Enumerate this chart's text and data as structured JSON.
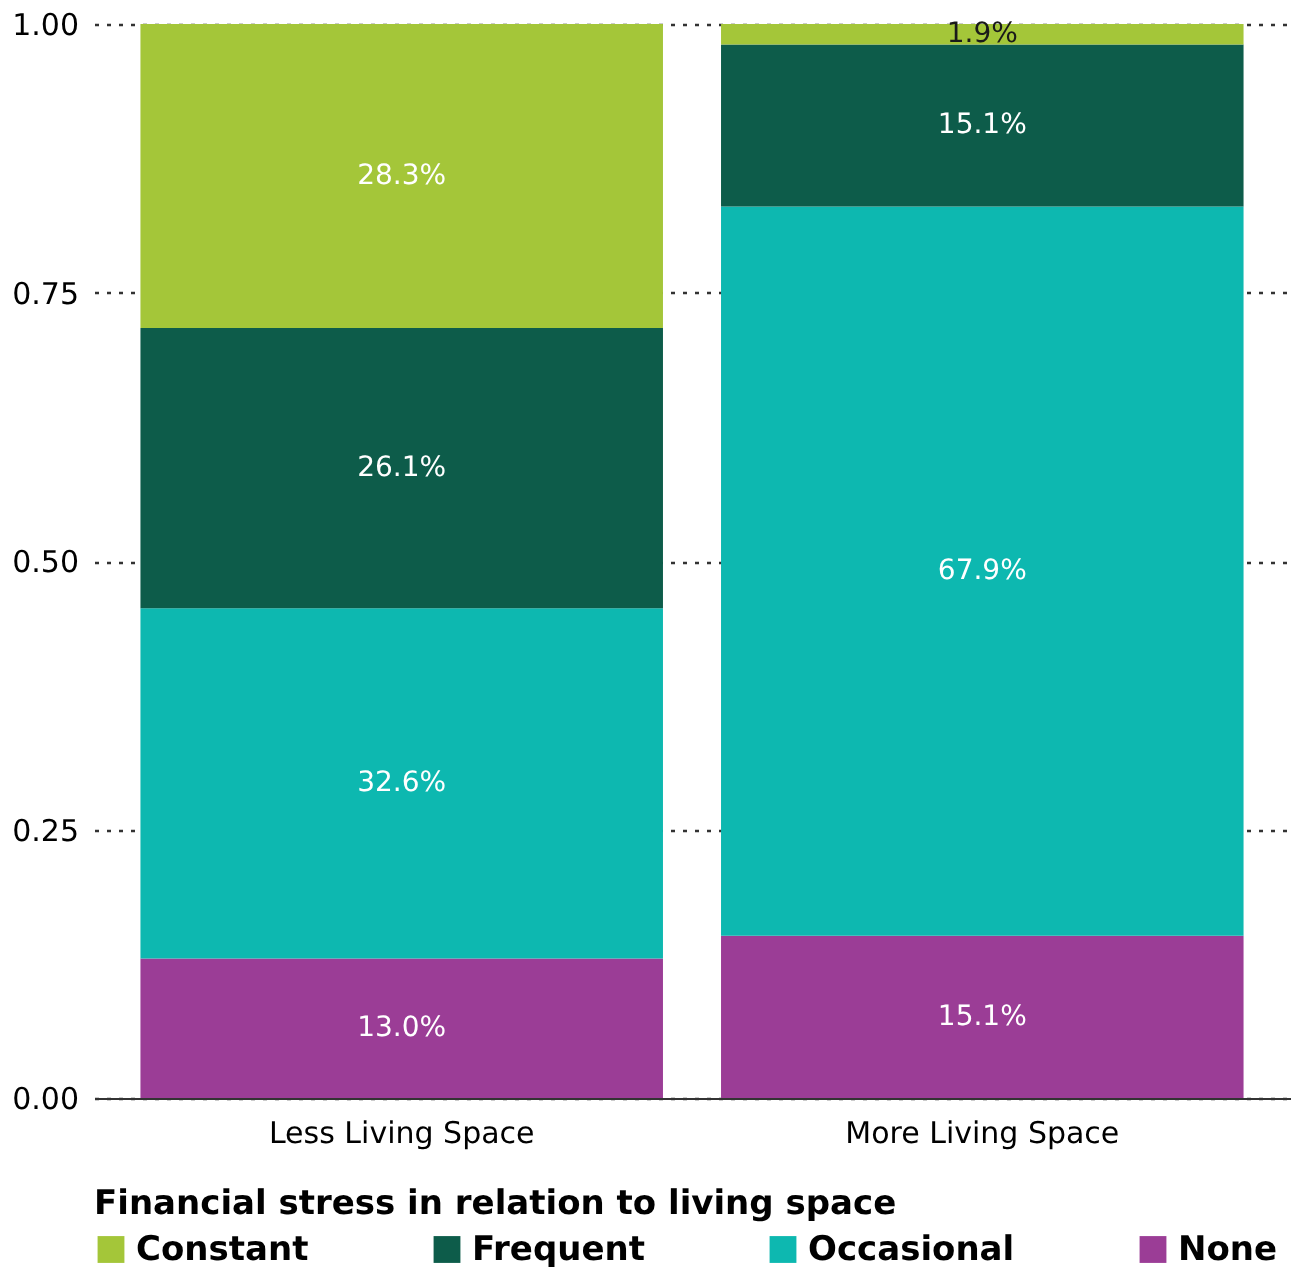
{
  "chart_data": {
    "type": "bar",
    "stacked": true,
    "legend_title": "Financial stress in relation to living space",
    "legend": "bottom",
    "grid": "y",
    "categories": [
      "Less Living Space",
      "More Living Space"
    ],
    "series": [
      {
        "name": "None",
        "color": "#9b3d96",
        "values": [
          0.13,
          0.151
        ],
        "value_labels": [
          "13.0%",
          "15.1%"
        ]
      },
      {
        "name": "Occasional",
        "color": "#0db8b0",
        "values": [
          0.326,
          0.679
        ],
        "value_labels": [
          "32.6%",
          "67.9%"
        ]
      },
      {
        "name": "Frequent",
        "color": "#0d5c4a",
        "values": [
          0.261,
          0.151
        ],
        "value_labels": [
          "26.1%",
          "15.1%"
        ]
      },
      {
        "name": "Constant",
        "color": "#a4c639",
        "values": [
          0.283,
          0.019
        ],
        "value_labels": [
          "28.3%",
          "1.9%"
        ]
      }
    ],
    "ylim": [
      0,
      1
    ],
    "yticks": [
      {
        "value": 0,
        "label": "0.00"
      },
      {
        "value": 0.25,
        "label": "0.25"
      },
      {
        "value": 0.5,
        "label": "0.50"
      },
      {
        "value": 0.75,
        "label": "0.75"
      },
      {
        "value": 1,
        "label": "1.00"
      }
    ]
  }
}
